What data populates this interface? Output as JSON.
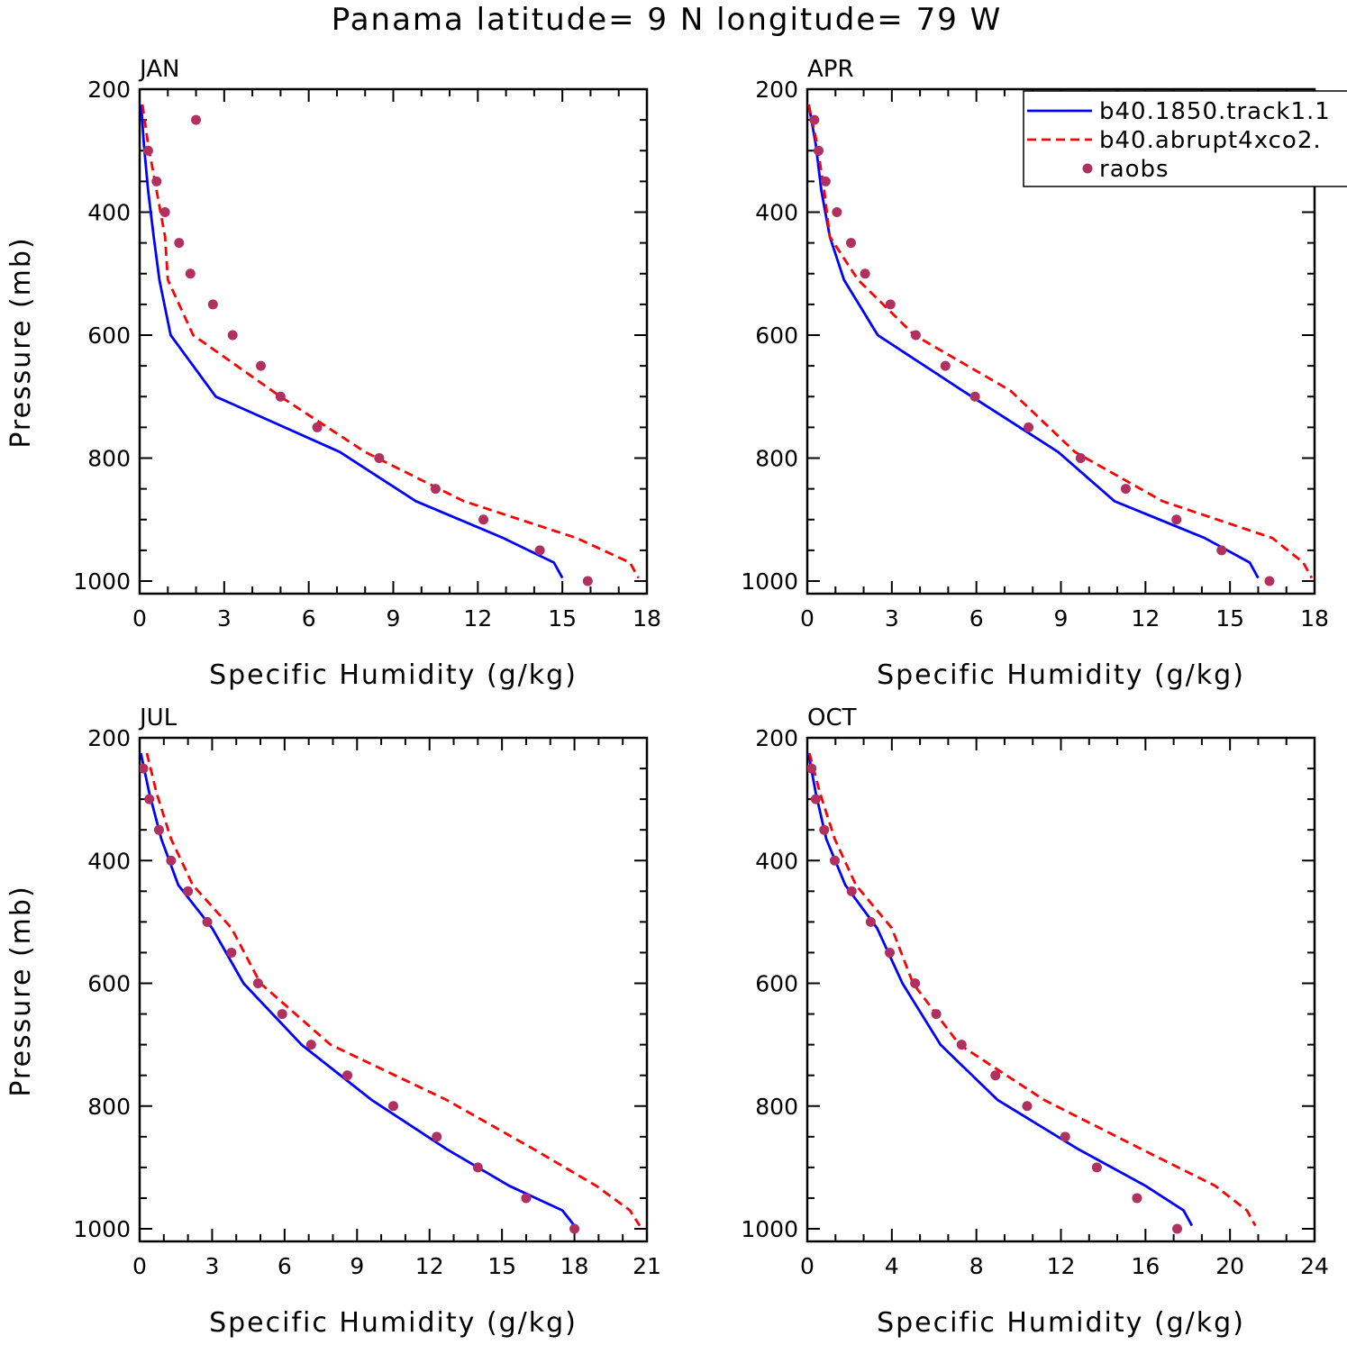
{
  "figure": {
    "title": "Panama  latitude= 9 N longitude= 79 W"
  },
  "legend": {
    "entries": [
      {
        "label": "b40.1850.track1.1",
        "color": "#0000ff",
        "style": "solid"
      },
      {
        "label": "b40.abrupt4xco2.",
        "color": "#ff0000",
        "style": "dashed"
      },
      {
        "label": "raobs",
        "color": "#b03060",
        "style": "dots"
      }
    ]
  },
  "chart_data": [
    {
      "type": "line",
      "panel": "JAN",
      "xlabel": "Specific Humidity (g/kg)",
      "ylabel": "Pressure (mb)",
      "xlim": [
        0,
        18
      ],
      "ylim": [
        1000,
        200
      ],
      "y_reversed": true,
      "xticks": [
        0,
        3,
        6,
        9,
        12,
        15,
        18
      ],
      "yticks": [
        200,
        400,
        600,
        800,
        1000
      ],
      "series": [
        {
          "name": "b40.1850.track1.1",
          "x": [
            0.05,
            0.15,
            0.3,
            0.5,
            0.7,
            1.1,
            2.7,
            7.1,
            9.8,
            12.9,
            14.7,
            15.0
          ],
          "y": [
            225,
            290,
            365,
            440,
            510,
            600,
            700,
            790,
            870,
            930,
            970,
            995
          ]
        },
        {
          "name": "b40.abrupt4xco2.",
          "x": [
            0.1,
            0.3,
            0.6,
            0.9,
            1.0,
            1.9,
            5.0,
            8.0,
            11.5,
            15.5,
            17.4,
            17.7
          ],
          "y": [
            225,
            290,
            365,
            440,
            510,
            600,
            700,
            790,
            870,
            930,
            970,
            995
          ]
        },
        {
          "name": "raobs",
          "x": [
            2.0,
            0.3,
            0.6,
            0.9,
            1.4,
            1.8,
            2.6,
            3.3,
            4.3,
            5.0,
            6.3,
            8.5,
            10.5,
            12.2,
            14.2,
            15.9
          ],
          "y": [
            250,
            300,
            350,
            400,
            450,
            500,
            550,
            600,
            650,
            700,
            750,
            800,
            850,
            900,
            950,
            1000
          ]
        }
      ]
    },
    {
      "type": "line",
      "panel": "APR",
      "xlabel": "Specific Humidity (g/kg)",
      "ylabel": "",
      "xlim": [
        0,
        18
      ],
      "ylim": [
        1000,
        200
      ],
      "y_reversed": true,
      "xticks": [
        0,
        3,
        6,
        9,
        12,
        15,
        18
      ],
      "yticks": [
        200,
        400,
        600,
        800,
        1000
      ],
      "series": [
        {
          "name": "b40.1850.track1.1",
          "x": [
            0.05,
            0.3,
            0.5,
            0.8,
            1.3,
            2.5,
            5.5,
            8.9,
            10.9,
            14.1,
            15.7,
            16.0
          ],
          "y": [
            225,
            290,
            365,
            440,
            510,
            600,
            690,
            790,
            870,
            930,
            970,
            995
          ]
        },
        {
          "name": "b40.abrupt4xco2.",
          "x": [
            0.05,
            0.35,
            0.6,
            0.8,
            1.8,
            3.8,
            7.2,
            9.5,
            12.6,
            16.5,
            17.6,
            17.9
          ],
          "y": [
            225,
            290,
            365,
            440,
            510,
            600,
            690,
            790,
            870,
            930,
            970,
            995
          ]
        },
        {
          "name": "raobs",
          "x": [
            0.25,
            0.4,
            0.65,
            1.05,
            1.55,
            2.05,
            2.95,
            3.85,
            4.9,
            5.95,
            7.85,
            9.7,
            11.3,
            13.1,
            14.7,
            16.4
          ],
          "y": [
            250,
            300,
            350,
            400,
            450,
            500,
            550,
            600,
            650,
            700,
            750,
            800,
            850,
            900,
            950,
            1000
          ]
        }
      ]
    },
    {
      "type": "line",
      "panel": "JUL",
      "xlabel": "Specific Humidity (g/kg)",
      "ylabel": "Pressure (mb)",
      "xlim": [
        0,
        21
      ],
      "ylim": [
        1000,
        200
      ],
      "y_reversed": true,
      "xticks": [
        0,
        3,
        6,
        9,
        12,
        15,
        18,
        21
      ],
      "yticks": [
        200,
        400,
        600,
        800,
        1000
      ],
      "series": [
        {
          "name": "b40.1850.track1.1",
          "x": [
            0.05,
            0.4,
            0.9,
            1.6,
            3.0,
            4.3,
            6.7,
            9.6,
            12.7,
            15.3,
            17.5,
            18.0
          ],
          "y": [
            225,
            290,
            365,
            440,
            510,
            600,
            700,
            790,
            870,
            930,
            970,
            995
          ]
        },
        {
          "name": "b40.abrupt4xco2.",
          "x": [
            0.3,
            0.7,
            1.3,
            2.2,
            3.8,
            5.0,
            7.9,
            12.7,
            16.3,
            18.9,
            20.3,
            20.7
          ],
          "y": [
            225,
            290,
            365,
            440,
            510,
            600,
            700,
            790,
            870,
            930,
            970,
            995
          ]
        },
        {
          "name": "raobs",
          "x": [
            0.15,
            0.4,
            0.8,
            1.3,
            2.0,
            2.8,
            3.8,
            4.9,
            5.9,
            7.1,
            8.6,
            10.5,
            12.3,
            14.0,
            16.0,
            18.0
          ],
          "y": [
            250,
            300,
            350,
            400,
            450,
            500,
            550,
            600,
            650,
            700,
            750,
            800,
            850,
            900,
            950,
            1000
          ]
        }
      ]
    },
    {
      "type": "line",
      "panel": "OCT",
      "xlabel": "Specific Humidity (g/kg)",
      "ylabel": "",
      "xlim": [
        0,
        24
      ],
      "ylim": [
        1000,
        200
      ],
      "y_reversed": true,
      "xticks": [
        0,
        4,
        8,
        12,
        16,
        20,
        24
      ],
      "yticks": [
        200,
        400,
        600,
        800,
        1000
      ],
      "series": [
        {
          "name": "b40.1850.track1.1",
          "x": [
            0.05,
            0.4,
            0.9,
            1.8,
            3.3,
            4.5,
            6.3,
            9.0,
            12.8,
            16.0,
            17.8,
            18.2
          ],
          "y": [
            225,
            290,
            365,
            440,
            510,
            600,
            700,
            790,
            870,
            930,
            970,
            995
          ]
        },
        {
          "name": "b40.abrupt4xco2.",
          "x": [
            0.1,
            0.6,
            1.3,
            2.3,
            4.0,
            5.0,
            7.2,
            11.2,
            15.8,
            19.3,
            20.8,
            21.2
          ],
          "y": [
            225,
            290,
            365,
            440,
            510,
            600,
            700,
            790,
            870,
            930,
            970,
            995
          ]
        },
        {
          "name": "raobs",
          "x": [
            0.2,
            0.4,
            0.8,
            1.3,
            2.1,
            3.0,
            3.9,
            5.1,
            6.1,
            7.3,
            8.9,
            10.4,
            12.2,
            13.7,
            15.6,
            17.5
          ],
          "y": [
            250,
            300,
            350,
            400,
            450,
            500,
            550,
            600,
            650,
            700,
            750,
            800,
            850,
            900,
            950,
            1000
          ]
        }
      ]
    }
  ]
}
